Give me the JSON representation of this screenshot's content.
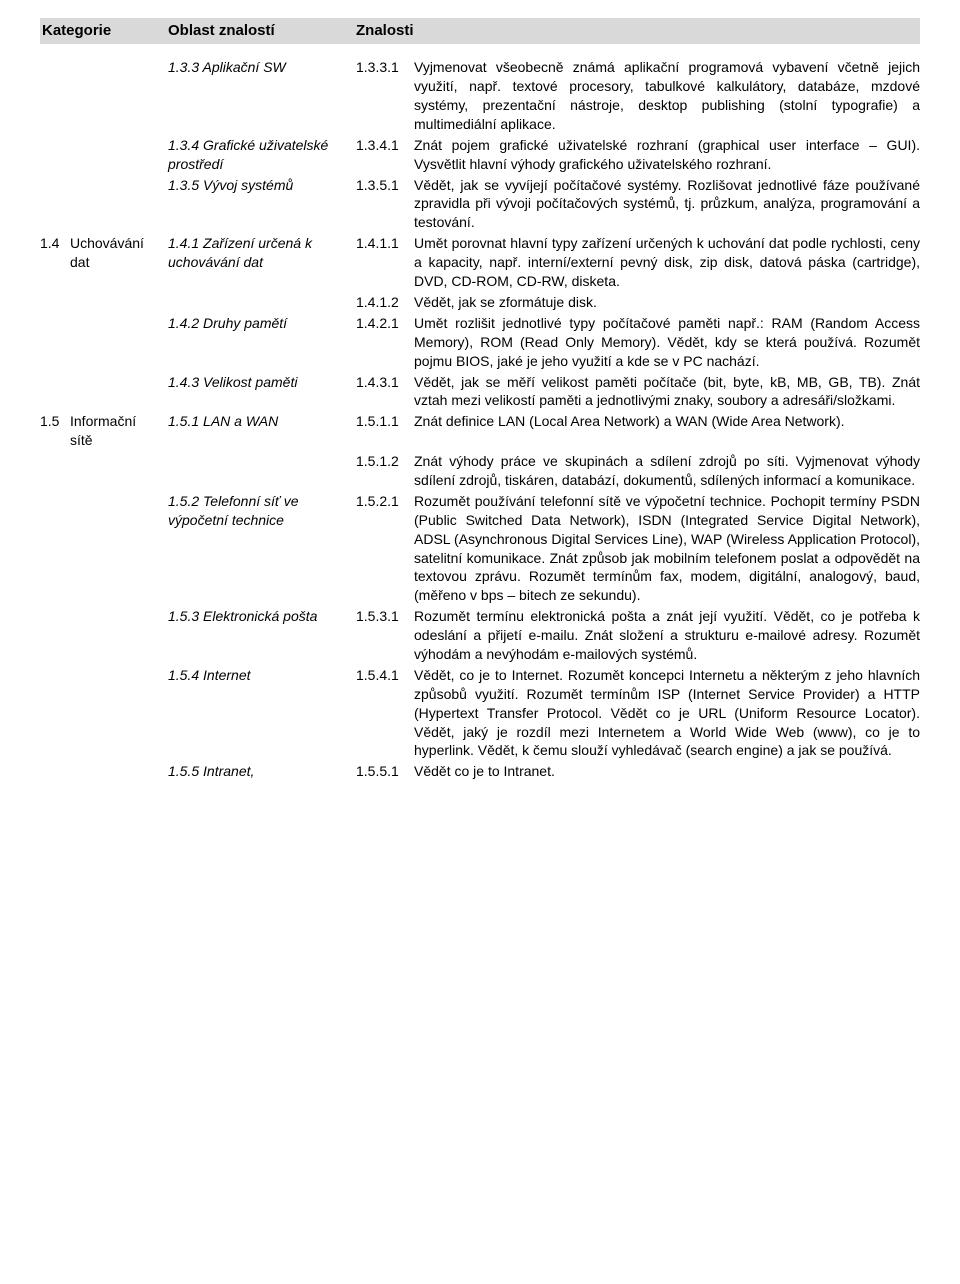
{
  "header": {
    "category": "Kategorie",
    "area": "Oblast znalostí",
    "knowledge": "Znalosti"
  },
  "rows": [
    {
      "cat_num": "",
      "cat_text": "",
      "area": "1.3.3 Aplikační SW",
      "num": "1.3.3.1",
      "desc": "Vyjmenovat všeobecně známá aplikační programová vybavení včetně jejich využití, např. textové procesory, tabulkové kalkulátory, databáze, mzdové systémy, prezentační nástroje, desktop publishing (stolní typografie) a multimediální aplikace."
    },
    {
      "cat_num": "",
      "cat_text": "",
      "area": "1.3.4 Grafické uživatelské prostředí",
      "num": "1.3.4.1",
      "desc": "Znát pojem grafické uživatelské rozhraní (graphical user interface – GUI). Vysvětlit hlavní výhody grafického uživatelského rozhraní."
    },
    {
      "cat_num": "",
      "cat_text": "",
      "area": "1.3.5 Vývoj systémů",
      "num": "1.3.5.1",
      "desc": "Vědět, jak se vyvíjejí počítačové systémy. Rozlišovat jednotlivé fáze používané zpravidla při vývoji počítačových systémů, tj. průzkum, analýza, programování a testování."
    },
    {
      "cat_num": "1.4",
      "cat_text": "Uchovávání dat",
      "area": "1.4.1 Zařízení určená k uchovávání dat",
      "num": "1.4.1.1",
      "desc": "Umět porovnat hlavní typy zařízení určených k uchování dat podle rychlosti, ceny a kapacity, např. interní/externí pevný disk, zip disk, datová páska (cartridge), DVD, CD-ROM, CD-RW, disketa."
    },
    {
      "cat_num": "",
      "cat_text": "",
      "area": "",
      "num": "1.4.1.2",
      "desc": "Vědět, jak se zformátuje disk."
    },
    {
      "cat_num": "",
      "cat_text": "",
      "area": "1.4.2 Druhy pamětí",
      "num": "1.4.2.1",
      "desc": "Umět rozlišit jednotlivé typy počítačové paměti např.: RAM (Random Access Memory), ROM (Read Only Memory). Vědět, kdy se která používá. Rozumět pojmu BIOS, jaké je jeho využití a kde se v PC nachází."
    },
    {
      "cat_num": "",
      "cat_text": "",
      "area": "1.4.3 Velikost paměti",
      "num": "1.4.3.1",
      "desc": "Vědět, jak se měří velikost paměti počítače (bit, byte, kB, MB, GB, TB). Znát vztah mezi velikostí paměti a jednotlivými znaky, soubory a adresáři/složkami."
    },
    {
      "cat_num": "1.5",
      "cat_text": "Informační sítě",
      "area": "1.5.1 LAN a WAN",
      "num": "1.5.1.1",
      "desc": "Znát definice LAN (Local Area Network) a WAN (Wide Area Network)."
    },
    {
      "cat_num": "",
      "cat_text": "",
      "area": "",
      "num": "1.5.1.2",
      "desc": "Znát výhody práce ve skupinách a sdílení zdrojů po síti. Vyjmenovat výhody sdílení zdrojů, tiskáren, databází, dokumentů, sdílených informací a komunikace."
    },
    {
      "cat_num": "",
      "cat_text": "",
      "area": "1.5.2 Telefonní síť ve výpočetní technice",
      "num": "1.5.2.1",
      "desc": "Rozumět používání telefonní sítě ve výpočetní technice. Pochopit termíny PSDN (Public Switched Data Network), ISDN (Integrated Service Digital Network), ADSL (Asynchronous Digital Services Line), WAP (Wireless Application Protocol), satelitní komunikace. Znát způsob jak  mobilním telefonem poslat a odpovědět na textovou zprávu. Rozumět termínům fax, modem, digitální, analogový, baud, (měřeno v bps – bitech ze sekundu)."
    },
    {
      "cat_num": "",
      "cat_text": "",
      "area": "1.5.3 Elektronická pošta",
      "num": "1.5.3.1",
      "desc": "Rozumět termínu elektronická pošta a znát její využití. Vědět, co je potřeba k odeslání a přijetí e-mailu. Znát složení a strukturu e-mailové adresy. Rozumět výhodám a nevýhodám e-mailových systémů."
    },
    {
      "cat_num": "",
      "cat_text": "",
      "area": "1.5.4 Internet",
      "num": "1.5.4.1",
      "desc": "Vědět, co je to Internet. Rozumět koncepci Internetu a některým z jeho hlavních způsobů využití. Rozumět termínům ISP (Internet Service Provider) a HTTP (Hypertext Transfer Protocol. Vědět co je URL (Uniform Resource Locator). Vědět, jaký je rozdíl mezi Internetem a World Wide Web (www), co je to hyperlink. Vědět, k čemu slouží vyhledávač (search engine) a jak se používá."
    },
    {
      "cat_num": "",
      "cat_text": "",
      "area": "1.5.5 Intranet,",
      "num": "1.5.5.1",
      "desc": "Vědět co je to Intranet."
    }
  ]
}
